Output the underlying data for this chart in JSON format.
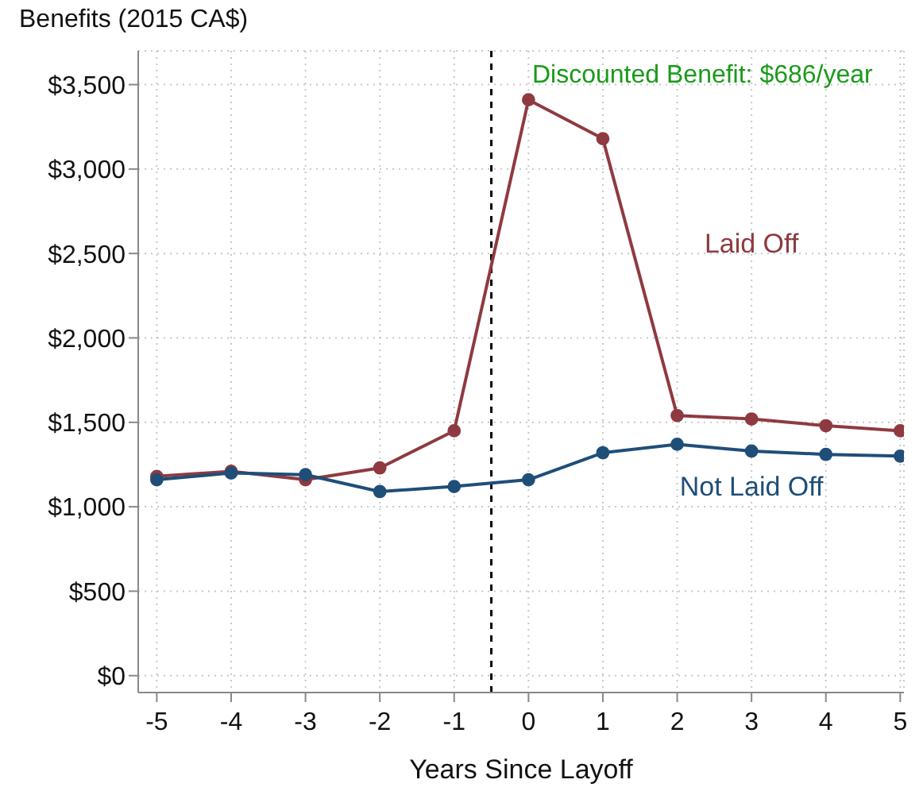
{
  "chart_data": {
    "type": "line",
    "ylabel": "Benefits (2015 CA$)",
    "xlabel": "Years Since Layoff",
    "annotations": [
      "Discounted Benefit: $686/year"
    ],
    "x": [
      -5,
      -4,
      -3,
      -2,
      -1,
      0,
      1,
      2,
      3,
      4,
      5
    ],
    "series": [
      {
        "name": "Laid Off",
        "color": "#8f3a40",
        "values": [
          1180,
          1210,
          1160,
          1230,
          1450,
          3410,
          3180,
          1540,
          1520,
          1480,
          1450
        ]
      },
      {
        "name": "Not Laid Off",
        "color": "#1f4e79",
        "values": [
          1160,
          1200,
          1190,
          1090,
          1120,
          1160,
          1320,
          1370,
          1330,
          1310,
          1300
        ]
      }
    ],
    "xlim": [
      -5.25,
      5.05
    ],
    "xticks": [
      -5,
      -4,
      -3,
      -2,
      -1,
      0,
      1,
      2,
      3,
      4,
      5
    ],
    "ylim": [
      -100,
      3700
    ],
    "yticks": [
      {
        "value": 0,
        "label": "$0"
      },
      {
        "value": 500,
        "label": "$500"
      },
      {
        "value": 1000,
        "label": "$1,000"
      },
      {
        "value": 1500,
        "label": "$1,500"
      },
      {
        "value": 2000,
        "label": "$2,000"
      },
      {
        "value": 2500,
        "label": "$2,500"
      },
      {
        "value": 3000,
        "label": "$3,000"
      },
      {
        "value": 3500,
        "label": "$3,500"
      }
    ],
    "ref_lines": [
      {
        "axis": "x",
        "value": -0.5,
        "color": "#000000",
        "line_style": "dashed"
      }
    ],
    "grid": true,
    "legend": false,
    "marker": "circle",
    "line_style": "solid"
  }
}
